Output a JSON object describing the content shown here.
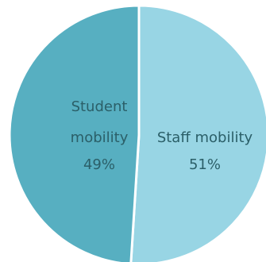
{
  "chart_data": {
    "type": "pie",
    "title": "",
    "slices": [
      {
        "label_lines": [
          "Student",
          "mobility"
        ],
        "value_label": "49%",
        "value": 49,
        "color": "#57afc1"
      },
      {
        "label_lines": [
          "Staff mobility"
        ],
        "value_label": "51%",
        "value": 51,
        "color": "#98d5e4"
      }
    ],
    "start_angle_deg": -90,
    "separator_color": "#ffffff",
    "label_color": "#2b5f68"
  }
}
